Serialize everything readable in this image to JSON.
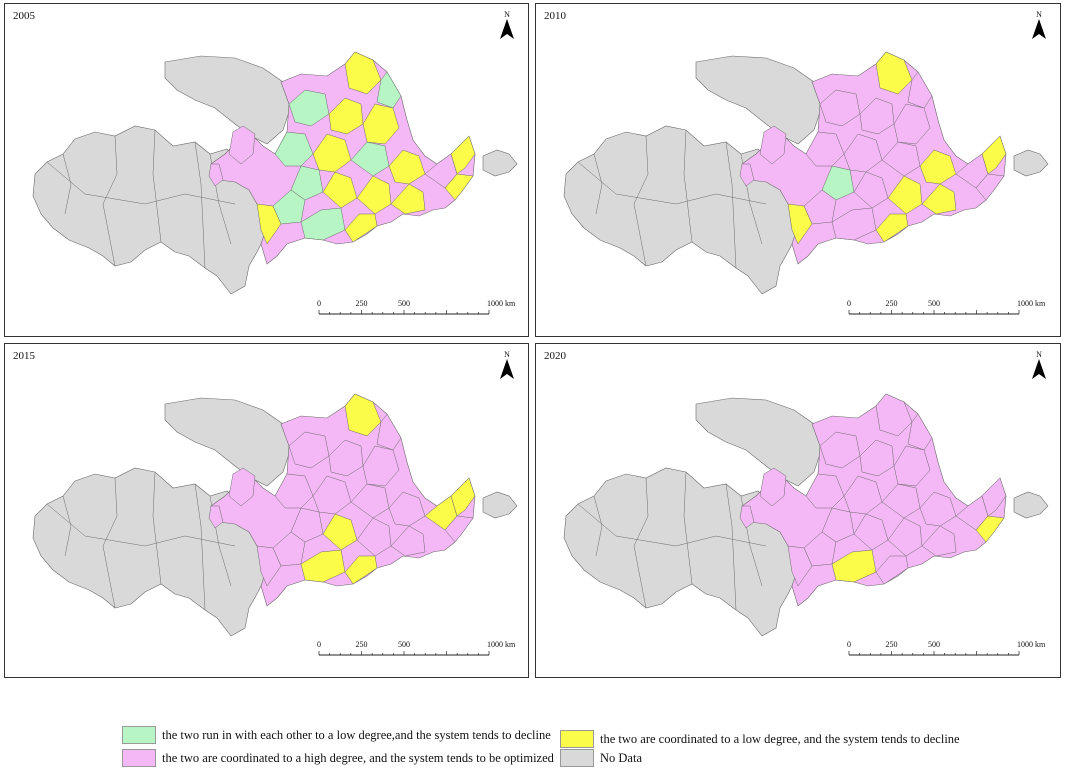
{
  "colors": {
    "green": "#b8f5c4",
    "pink": "#f5b8f6",
    "yellow": "#fbfb4a",
    "gray": "#d9d9d9",
    "border": "#6a6a6a"
  },
  "panels": [
    {
      "year": "2005",
      "green_regions": 9,
      "yellow_regions": 14
    },
    {
      "year": "2010",
      "green_regions": 1,
      "yellow_regions": 10
    },
    {
      "year": "2015",
      "green_regions": 0,
      "yellow_regions": 7
    },
    {
      "year": "2020",
      "green_regions": 0,
      "yellow_regions": 2
    }
  ],
  "north_label": "N",
  "scale": {
    "labels": [
      "0",
      "250",
      "500",
      "1000 km"
    ]
  },
  "legend": {
    "green": "the two run in with each other to a low degree,and the system tends to decline",
    "yellow": "the two are coordinated to a low degree, and the system tends to decline",
    "pink": "the two are coordinated to a high degree, and the system tends to be optimized",
    "gray": "No Data"
  }
}
